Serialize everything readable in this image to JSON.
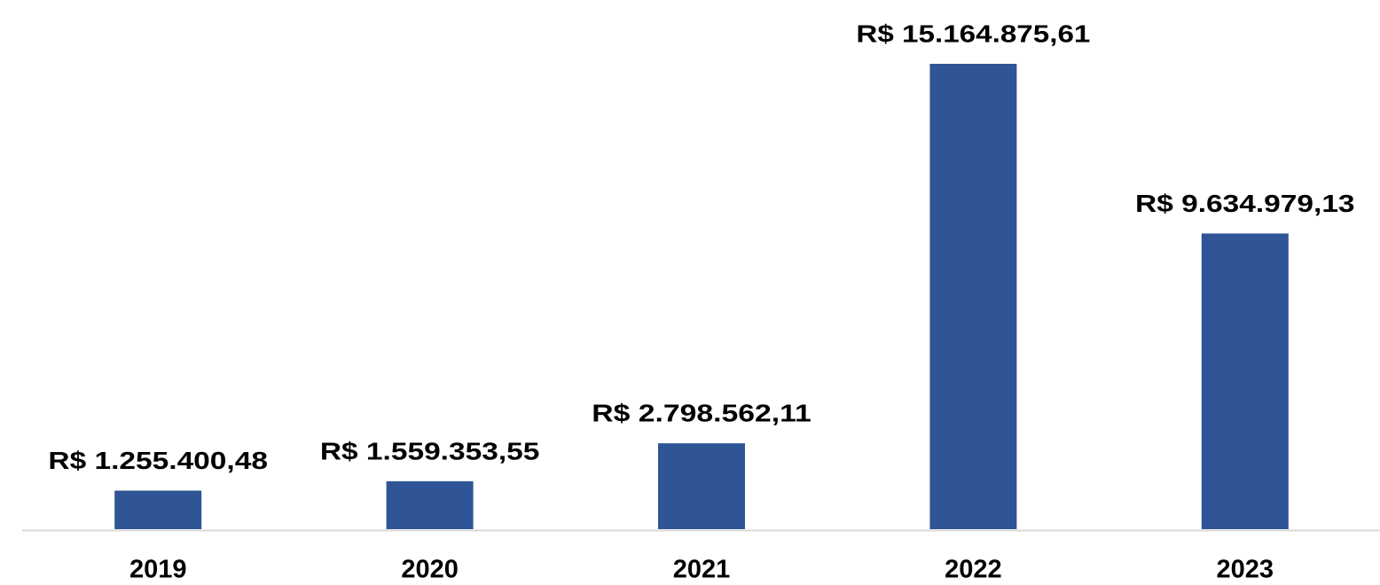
{
  "chart_data": {
    "type": "bar",
    "categories": [
      "2019",
      "2020",
      "2021",
      "2022",
      "2023"
    ],
    "values": [
      1255400.48,
      1559353.55,
      2798562.11,
      15164875.61,
      9634979.13
    ],
    "value_labels": [
      "R$ 1.255.400,48",
      "R$ 1.559.353,55",
      "R$ 2.798.562,11",
      "R$ 15.164.875,61",
      "R$ 9.634.979,13"
    ],
    "color": "#2f5597"
  }
}
